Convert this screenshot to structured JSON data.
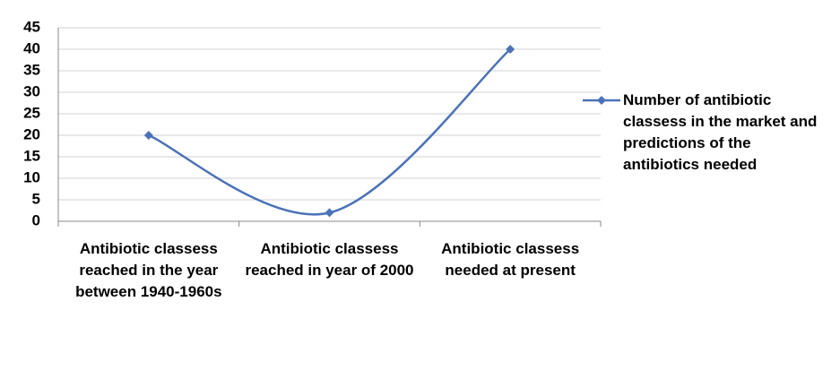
{
  "chart_data": {
    "type": "line",
    "categories": [
      "Antibiotic classess reached in the year between 1940-1960s",
      "Antibiotic classess reached in year of 2000",
      "Antibiotic classess needed at present"
    ],
    "series": [
      {
        "name": "Number of antibiotic classess in the market and predictions of the antibiotics needed",
        "color": "#4a72b8",
        "values": [
          20,
          2,
          40
        ]
      }
    ],
    "ylim": [
      0,
      45
    ],
    "yticks": [
      0,
      5,
      10,
      15,
      20,
      25,
      30,
      35,
      40,
      45
    ],
    "grid": true,
    "smooth": true,
    "legend": "right"
  }
}
